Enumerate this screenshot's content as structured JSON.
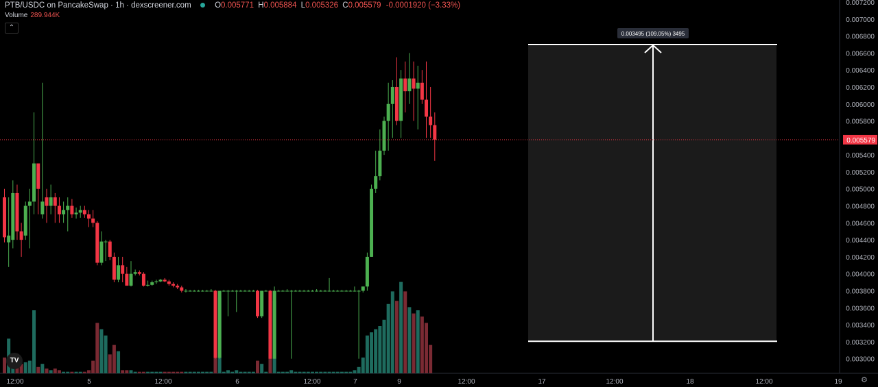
{
  "header": {
    "pair": "PTB/USDC on PancakeSwap · 1h · dexscreener.com",
    "open_label": "O",
    "open": "0.005771",
    "high_label": "H",
    "high": "0.005884",
    "low_label": "L",
    "low": "0.005326",
    "close_label": "C",
    "close": "0.005579",
    "change": "-0.0001920 (−3.33%)"
  },
  "volume": {
    "label": "Volume",
    "value": "289.944K"
  },
  "collapse_icon": "chevron-up-icon",
  "colors": {
    "up": "#4caf50",
    "down": "#f23645",
    "vol_up": "#1e6b5e",
    "vol_down": "#7a2a33",
    "price_tag": "#f23645"
  },
  "chart_data": {
    "type": "candlestick",
    "ylim": [
      0.00282,
      0.0072
    ],
    "y_ticks": [
      "0.003000",
      "0.003200",
      "0.003400",
      "0.003600",
      "0.003800",
      "0.004000",
      "0.004200",
      "0.004400",
      "0.004600",
      "0.004800",
      "0.005000",
      "0.005200",
      "0.005400",
      "0.005600",
      "0.005800",
      "0.006000",
      "0.006200",
      "0.006400",
      "0.006600",
      "0.006800",
      "0.007000",
      "0.007200"
    ],
    "x_ticks": [
      "12:00",
      "5",
      "12:00",
      "6",
      "12:00",
      "7",
      "9",
      "12:00",
      "17",
      "12:00",
      "18",
      "12:00",
      "19"
    ],
    "last_price": "0.005579",
    "measure_label": "0.003495 (109.05%) 3495",
    "measure": {
      "from": 0.003205,
      "to": 0.0067
    },
    "candles": [
      [
        0.0049,
        0.005,
        0.00443,
        0.00437
      ],
      [
        0.00437,
        0.0049,
        0.00445,
        0.00408
      ],
      [
        0.0044,
        0.0051,
        0.00495,
        0.0043
      ],
      [
        0.00495,
        0.00505,
        0.0045,
        0.0044
      ],
      [
        0.0045,
        0.0046,
        0.0044,
        0.0042
      ],
      [
        0.00445,
        0.00485,
        0.0048,
        0.0044
      ],
      [
        0.0048,
        0.005,
        0.00485,
        0.0043
      ],
      [
        0.00485,
        0.0059,
        0.0053,
        0.0047
      ],
      [
        0.0053,
        0.00525,
        0.005,
        0.0047
      ],
      [
        0.0047,
        0.00625,
        0.00485,
        0.00465
      ],
      [
        0.0049,
        0.005,
        0.0048,
        0.0046
      ],
      [
        0.0048,
        0.00505,
        0.0049,
        0.0047
      ],
      [
        0.0049,
        0.00495,
        0.0048,
        0.0046
      ],
      [
        0.0048,
        0.0049,
        0.0047,
        0.0046
      ],
      [
        0.0047,
        0.00485,
        0.00475,
        0.0046
      ],
      [
        0.00475,
        0.0049,
        0.0048,
        0.0045
      ],
      [
        0.0048,
        0.00488,
        0.0047,
        0.00466
      ],
      [
        0.0047,
        0.00478,
        0.00472,
        0.00465
      ],
      [
        0.00472,
        0.0048,
        0.00475,
        0.00466
      ],
      [
        0.00475,
        0.0048,
        0.0047,
        0.00466
      ],
      [
        0.0047,
        0.00475,
        0.00465,
        0.00455
      ],
      [
        0.00465,
        0.00475,
        0.0046,
        0.00455
      ],
      [
        0.0046,
        0.00462,
        0.00413,
        0.0041
      ],
      [
        0.00413,
        0.0045,
        0.00438,
        0.0041
      ],
      [
        0.00438,
        0.0044,
        0.00438,
        0.00415
      ],
      [
        0.00438,
        0.0044,
        0.0042,
        0.00416
      ],
      [
        0.0042,
        0.00425,
        0.00393,
        0.0039
      ],
      [
        0.00393,
        0.0042,
        0.0041,
        0.0039
      ],
      [
        0.0041,
        0.0042,
        0.004,
        0.0039
      ],
      [
        0.004,
        0.00408,
        0.00386,
        0.00386
      ],
      [
        0.00386,
        0.00415,
        0.004,
        0.00385
      ],
      [
        0.004,
        0.00405,
        0.00402,
        0.00398
      ],
      [
        0.00402,
        0.00404,
        0.004,
        0.00398
      ],
      [
        0.004,
        0.00402,
        0.00386,
        0.00385
      ],
      [
        0.00386,
        0.00392,
        0.00387,
        0.00385
      ],
      [
        0.00387,
        0.00392,
        0.0039,
        0.00386
      ],
      [
        0.0039,
        0.00393,
        0.00391,
        0.00388
      ],
      [
        0.00391,
        0.00394,
        0.00393,
        0.0039
      ],
      [
        0.00393,
        0.00395,
        0.00391,
        0.0039
      ],
      [
        0.00391,
        0.00393,
        0.00388,
        0.00386
      ],
      [
        0.00388,
        0.0039,
        0.00386,
        0.00384
      ],
      [
        0.00386,
        0.00388,
        0.00384,
        0.00382
      ],
      [
        0.00384,
        0.00386,
        0.0038,
        0.00378
      ],
      [
        0.0038,
        0.00382,
        0.0038,
        0.00378
      ],
      [
        0.0038,
        0.00381,
        0.0038,
        0.00379
      ],
      [
        0.0038,
        0.00381,
        0.0038,
        0.00379
      ],
      [
        0.0038,
        0.00381,
        0.0038,
        0.00379
      ],
      [
        0.0038,
        0.00381,
        0.0038,
        0.00379
      ],
      [
        0.0038,
        0.00381,
        0.0038,
        0.00379
      ],
      [
        0.0038,
        0.00382,
        0.0038,
        0.00379
      ],
      [
        0.0038,
        0.00381,
        0.00301,
        0.003
      ],
      [
        0.00301,
        0.0038,
        0.0038,
        0.003
      ],
      [
        0.0038,
        0.00381,
        0.0038,
        0.00379
      ],
      [
        0.0038,
        0.00381,
        0.0038,
        0.0035
      ],
      [
        0.0038,
        0.00381,
        0.0038,
        0.00379
      ],
      [
        0.0038,
        0.00381,
        0.0038,
        0.00355
      ],
      [
        0.0038,
        0.00381,
        0.0038,
        0.00379
      ],
      [
        0.0038,
        0.00381,
        0.0038,
        0.00379
      ],
      [
        0.0038,
        0.00381,
        0.0038,
        0.00379
      ],
      [
        0.0038,
        0.00381,
        0.0038,
        0.00379
      ],
      [
        0.0038,
        0.00381,
        0.0035,
        0.00348
      ],
      [
        0.0035,
        0.0038,
        0.0038,
        0.00348
      ],
      [
        0.0038,
        0.00381,
        0.0038,
        0.00379
      ],
      [
        0.0038,
        0.00381,
        0.003,
        0.003
      ],
      [
        0.003,
        0.00385,
        0.0038,
        0.003
      ],
      [
        0.0038,
        0.00381,
        0.0038,
        0.00379
      ],
      [
        0.0038,
        0.00381,
        0.0038,
        0.00379
      ],
      [
        0.0038,
        0.00382,
        0.0038,
        0.00379
      ],
      [
        0.0038,
        0.00381,
        0.0038,
        0.003
      ],
      [
        0.0038,
        0.00381,
        0.0038,
        0.00379
      ],
      [
        0.0038,
        0.00381,
        0.0038,
        0.00379
      ],
      [
        0.0038,
        0.00381,
        0.0038,
        0.00379
      ],
      [
        0.0038,
        0.00381,
        0.0038,
        0.00379
      ],
      [
        0.0038,
        0.00381,
        0.0038,
        0.00379
      ],
      [
        0.0038,
        0.00382,
        0.0038,
        0.00379
      ],
      [
        0.0038,
        0.00381,
        0.0038,
        0.00379
      ],
      [
        0.0038,
        0.00381,
        0.0038,
        0.00379
      ],
      [
        0.0038,
        0.00395,
        0.0038,
        0.00379
      ],
      [
        0.0038,
        0.00381,
        0.0038,
        0.00379
      ],
      [
        0.0038,
        0.00381,
        0.0038,
        0.00379
      ],
      [
        0.0038,
        0.00381,
        0.0038,
        0.00379
      ],
      [
        0.0038,
        0.00381,
        0.0038,
        0.00379
      ],
      [
        0.0038,
        0.00381,
        0.0038,
        0.00379
      ],
      [
        0.0038,
        0.00385,
        0.0038,
        0.00379
      ],
      [
        0.0038,
        0.00381,
        0.0038,
        0.003
      ],
      [
        0.0038,
        0.00385,
        0.00385,
        0.00378
      ],
      [
        0.00385,
        0.00425,
        0.0042,
        0.0038
      ],
      [
        0.0042,
        0.00505,
        0.005,
        0.0042
      ],
      [
        0.005,
        0.00545,
        0.00515,
        0.00495
      ],
      [
        0.00515,
        0.0057,
        0.00545,
        0.0051
      ],
      [
        0.00545,
        0.00585,
        0.0058,
        0.0054
      ],
      [
        0.0058,
        0.00625,
        0.006,
        0.00545
      ],
      [
        0.006,
        0.00628,
        0.0062,
        0.0056
      ],
      [
        0.0062,
        0.00655,
        0.0058,
        0.00575
      ],
      [
        0.0058,
        0.0064,
        0.0063,
        0.0056
      ],
      [
        0.0063,
        0.0065,
        0.00615,
        0.0059
      ],
      [
        0.00615,
        0.0066,
        0.0063,
        0.006
      ],
      [
        0.0063,
        0.0065,
        0.00618,
        0.0058
      ],
      [
        0.00618,
        0.00645,
        0.00625,
        0.0057
      ],
      [
        0.00625,
        0.0064,
        0.00605,
        0.006
      ],
      [
        0.00605,
        0.0065,
        0.00585,
        0.0056
      ],
      [
        0.00585,
        0.0062,
        0.00575,
        0.0056
      ],
      [
        0.00575,
        0.0059,
        0.00558,
        0.00533
      ]
    ],
    "volume": [
      0.5,
      1.1,
      0.4,
      0.3,
      0.3,
      0.35,
      0.4,
      2.0,
      0.2,
      0.3,
      0.15,
      0.1,
      0.15,
      0.1,
      0.05,
      0.05,
      0.05,
      0.05,
      0.05,
      0.05,
      0.1,
      0.4,
      1.6,
      1.4,
      1.2,
      0.6,
      0.9,
      0.7,
      0.1,
      0.1,
      0.1,
      0.05,
      0.05,
      0.05,
      0.05,
      0.05,
      0.05,
      0.05,
      0.05,
      0.05,
      0.05,
      0.05,
      0.05,
      0.05,
      0.05,
      0.05,
      0.05,
      0.05,
      0.05,
      0.05,
      2.4,
      2.4,
      0.05,
      0.1,
      0.05,
      0.1,
      0.05,
      0.05,
      0.05,
      0.05,
      0.4,
      0.3,
      0.05,
      2.3,
      2.3,
      0.05,
      0.05,
      0.05,
      0.1,
      0.05,
      0.05,
      0.05,
      0.05,
      0.05,
      0.05,
      0.05,
      0.05,
      0.05,
      0.05,
      0.05,
      0.05,
      0.05,
      0.05,
      0.1,
      0.2,
      0.5,
      1.2,
      1.3,
      1.4,
      1.5,
      1.7,
      2.2,
      2.6,
      2.3,
      2.9,
      2.6,
      2.1,
      1.9,
      2.0,
      1.8,
      1.6,
      0.9
    ]
  }
}
